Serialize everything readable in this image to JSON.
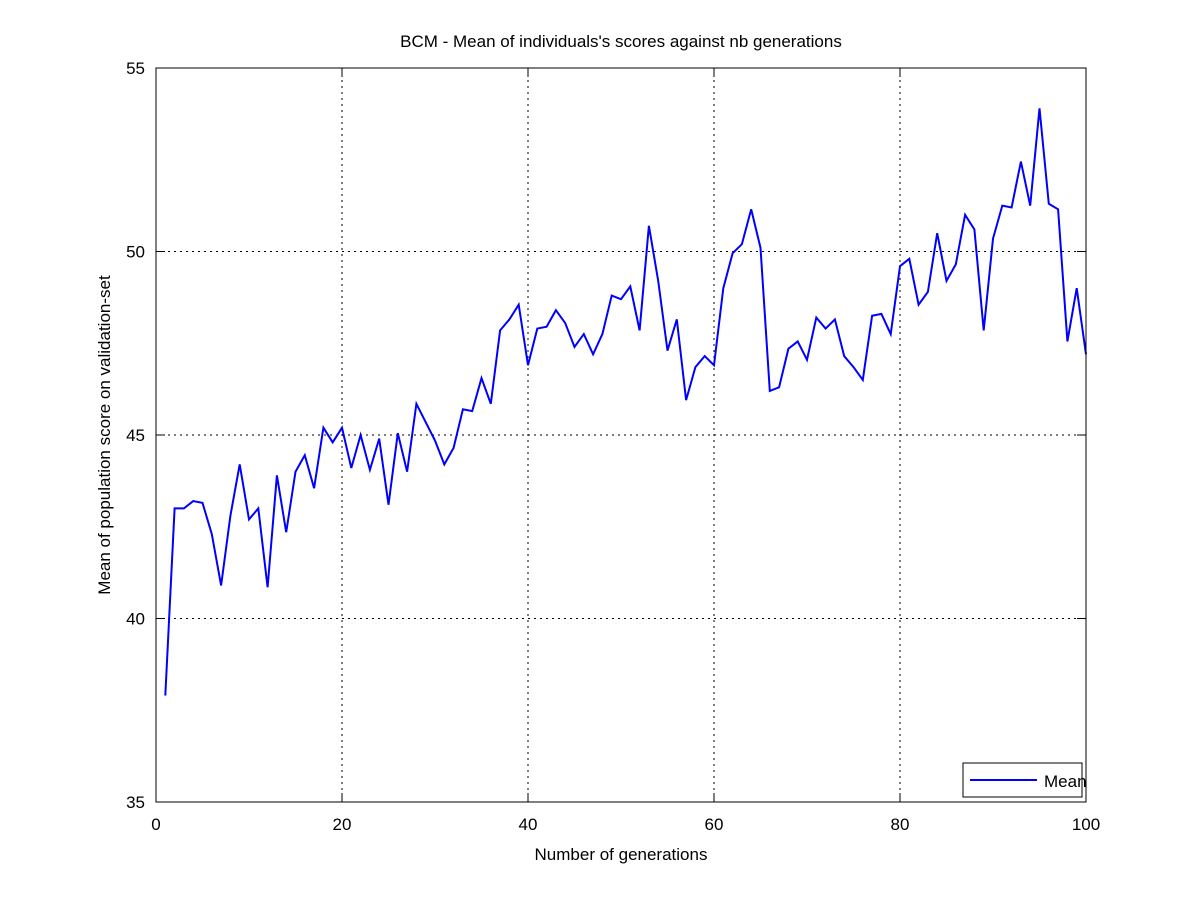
{
  "chart_data": {
    "type": "line",
    "title": "BCM - Mean of individuals's scores against nb generations",
    "xlabel": "Number of generations",
    "ylabel": "Mean of population score on validation-set",
    "xlim": [
      0,
      100
    ],
    "ylim": [
      35,
      55
    ],
    "xticks": [
      0,
      20,
      40,
      60,
      80,
      100
    ],
    "yticks": [
      35,
      40,
      45,
      50,
      55
    ],
    "grid": true,
    "legend_position": "bottom-right",
    "series": [
      {
        "name": "Mean",
        "color": "#0000ff",
        "x": [
          1,
          2,
          3,
          4,
          5,
          6,
          7,
          8,
          9,
          10,
          11,
          12,
          13,
          14,
          15,
          16,
          17,
          18,
          19,
          20,
          21,
          22,
          23,
          24,
          25,
          26,
          27,
          28,
          29,
          30,
          31,
          32,
          33,
          34,
          35,
          36,
          37,
          38,
          39,
          40,
          41,
          42,
          43,
          44,
          45,
          46,
          47,
          48,
          49,
          50,
          51,
          52,
          53,
          54,
          55,
          56,
          57,
          58,
          59,
          60,
          61,
          62,
          63,
          64,
          65,
          66,
          67,
          68,
          69,
          70,
          71,
          72,
          73,
          74,
          75,
          76,
          77,
          78,
          79,
          80,
          81,
          82,
          83,
          84,
          85,
          86,
          87,
          88,
          89,
          90,
          91,
          92,
          93,
          94,
          95,
          96,
          97,
          98,
          99,
          100
        ],
        "values": [
          37.9,
          43.0,
          43.0,
          43.2,
          43.15,
          42.3,
          40.9,
          42.8,
          44.2,
          42.7,
          43.0,
          40.85,
          43.9,
          42.35,
          44.0,
          44.45,
          43.55,
          45.2,
          44.8,
          45.2,
          44.1,
          45.0,
          44.05,
          44.9,
          43.1,
          45.05,
          44.0,
          45.85,
          45.35,
          44.85,
          44.2,
          44.65,
          45.7,
          45.65,
          46.55,
          45.85,
          47.85,
          48.15,
          48.55,
          46.9,
          47.9,
          47.95,
          48.4,
          48.05,
          47.4,
          47.75,
          47.2,
          47.75,
          48.8,
          48.7,
          49.05,
          47.85,
          50.7,
          49.2,
          47.3,
          48.15,
          45.95,
          46.85,
          47.15,
          46.9,
          49.0,
          49.95,
          50.2,
          51.15,
          50.1,
          46.2,
          46.3,
          47.35,
          47.55,
          47.05,
          48.2,
          47.9,
          48.15,
          47.15,
          46.85,
          46.5,
          48.25,
          48.3,
          47.75,
          49.6,
          49.8,
          48.55,
          48.9,
          50.5,
          49.2,
          49.65,
          51.0,
          50.6,
          47.85,
          50.35,
          51.25,
          51.2,
          52.45,
          51.25,
          53.9,
          51.3,
          51.15,
          47.55,
          49.0,
          47.2
        ]
      }
    ]
  }
}
